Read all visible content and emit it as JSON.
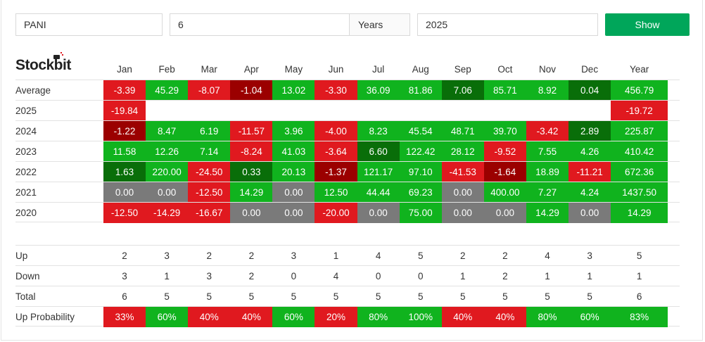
{
  "controls": {
    "symbol": "PANI",
    "years": "6",
    "years_unit": "Years",
    "end_year": "2025",
    "show_label": "Show"
  },
  "logo": {
    "text": "Stockbit"
  },
  "colors": {
    "dark_red": "#9b0000",
    "red": "#e0191f",
    "dark_green": "#096e09",
    "green": "#10b31e",
    "gray": "#7a7a7a",
    "button": "#00a65a"
  },
  "months": [
    "Jan",
    "Feb",
    "Mar",
    "Apr",
    "May",
    "Jun",
    "Jul",
    "Aug",
    "Sep",
    "Oct",
    "Nov",
    "Dec",
    "Year"
  ],
  "rows": [
    {
      "label": "Average",
      "cells": [
        {
          "v": "-3.39",
          "c": "red"
        },
        {
          "v": "45.29",
          "c": "green"
        },
        {
          "v": "-8.07",
          "c": "red"
        },
        {
          "v": "-1.04",
          "c": "dark_red"
        },
        {
          "v": "13.02",
          "c": "green"
        },
        {
          "v": "-3.30",
          "c": "red"
        },
        {
          "v": "36.09",
          "c": "green"
        },
        {
          "v": "81.86",
          "c": "green"
        },
        {
          "v": "7.06",
          "c": "dark_green"
        },
        {
          "v": "85.71",
          "c": "green"
        },
        {
          "v": "8.92",
          "c": "green"
        },
        {
          "v": "0.04",
          "c": "dark_green"
        },
        {
          "v": "456.79",
          "c": "green"
        }
      ]
    },
    {
      "label": "2025",
      "cells": [
        {
          "v": "-19.84",
          "c": "red"
        },
        {
          "v": "",
          "c": "none"
        },
        {
          "v": "",
          "c": "none"
        },
        {
          "v": "",
          "c": "none"
        },
        {
          "v": "",
          "c": "none"
        },
        {
          "v": "",
          "c": "none"
        },
        {
          "v": "",
          "c": "none"
        },
        {
          "v": "",
          "c": "none"
        },
        {
          "v": "",
          "c": "none"
        },
        {
          "v": "",
          "c": "none"
        },
        {
          "v": "",
          "c": "none"
        },
        {
          "v": "",
          "c": "none"
        },
        {
          "v": "-19.72",
          "c": "red"
        }
      ]
    },
    {
      "label": "2024",
      "cells": [
        {
          "v": "-1.22",
          "c": "dark_red"
        },
        {
          "v": "8.47",
          "c": "green"
        },
        {
          "v": "6.19",
          "c": "green"
        },
        {
          "v": "-11.57",
          "c": "red"
        },
        {
          "v": "3.96",
          "c": "green"
        },
        {
          "v": "-4.00",
          "c": "red"
        },
        {
          "v": "8.23",
          "c": "green"
        },
        {
          "v": "45.54",
          "c": "green"
        },
        {
          "v": "48.71",
          "c": "green"
        },
        {
          "v": "39.70",
          "c": "green"
        },
        {
          "v": "-3.42",
          "c": "red"
        },
        {
          "v": "2.89",
          "c": "dark_green"
        },
        {
          "v": "225.87",
          "c": "green"
        }
      ]
    },
    {
      "label": "2023",
      "cells": [
        {
          "v": "11.58",
          "c": "green"
        },
        {
          "v": "12.26",
          "c": "green"
        },
        {
          "v": "7.14",
          "c": "green"
        },
        {
          "v": "-8.24",
          "c": "red"
        },
        {
          "v": "41.03",
          "c": "green"
        },
        {
          "v": "-3.64",
          "c": "red"
        },
        {
          "v": "6.60",
          "c": "dark_green"
        },
        {
          "v": "122.42",
          "c": "green"
        },
        {
          "v": "28.12",
          "c": "green"
        },
        {
          "v": "-9.52",
          "c": "red"
        },
        {
          "v": "7.55",
          "c": "green"
        },
        {
          "v": "4.26",
          "c": "green"
        },
        {
          "v": "410.42",
          "c": "green"
        }
      ]
    },
    {
      "label": "2022",
      "cells": [
        {
          "v": "1.63",
          "c": "dark_green"
        },
        {
          "v": "220.00",
          "c": "green"
        },
        {
          "v": "-24.50",
          "c": "red"
        },
        {
          "v": "0.33",
          "c": "dark_green"
        },
        {
          "v": "20.13",
          "c": "green"
        },
        {
          "v": "-1.37",
          "c": "dark_red"
        },
        {
          "v": "121.17",
          "c": "green"
        },
        {
          "v": "97.10",
          "c": "green"
        },
        {
          "v": "-41.53",
          "c": "red"
        },
        {
          "v": "-1.64",
          "c": "dark_red"
        },
        {
          "v": "18.89",
          "c": "green"
        },
        {
          "v": "-11.21",
          "c": "red"
        },
        {
          "v": "672.36",
          "c": "green"
        }
      ]
    },
    {
      "label": "2021",
      "cells": [
        {
          "v": "0.00",
          "c": "gray"
        },
        {
          "v": "0.00",
          "c": "gray"
        },
        {
          "v": "-12.50",
          "c": "red"
        },
        {
          "v": "14.29",
          "c": "green"
        },
        {
          "v": "0.00",
          "c": "gray"
        },
        {
          "v": "12.50",
          "c": "green"
        },
        {
          "v": "44.44",
          "c": "green"
        },
        {
          "v": "69.23",
          "c": "green"
        },
        {
          "v": "0.00",
          "c": "gray"
        },
        {
          "v": "400.00",
          "c": "green"
        },
        {
          "v": "7.27",
          "c": "green"
        },
        {
          "v": "4.24",
          "c": "green"
        },
        {
          "v": "1437.50",
          "c": "green"
        }
      ]
    },
    {
      "label": "2020",
      "cells": [
        {
          "v": "-12.50",
          "c": "red"
        },
        {
          "v": "-14.29",
          "c": "red"
        },
        {
          "v": "-16.67",
          "c": "red"
        },
        {
          "v": "0.00",
          "c": "gray"
        },
        {
          "v": "0.00",
          "c": "gray"
        },
        {
          "v": "-20.00",
          "c": "red"
        },
        {
          "v": "0.00",
          "c": "gray"
        },
        {
          "v": "75.00",
          "c": "green"
        },
        {
          "v": "0.00",
          "c": "gray"
        },
        {
          "v": "0.00",
          "c": "gray"
        },
        {
          "v": "14.29",
          "c": "green"
        },
        {
          "v": "0.00",
          "c": "gray"
        },
        {
          "v": "14.29",
          "c": "green"
        }
      ]
    }
  ],
  "stats": [
    {
      "label": "Up",
      "cells": [
        {
          "v": "2",
          "c": "none"
        },
        {
          "v": "3",
          "c": "none"
        },
        {
          "v": "2",
          "c": "none"
        },
        {
          "v": "2",
          "c": "none"
        },
        {
          "v": "3",
          "c": "none"
        },
        {
          "v": "1",
          "c": "none"
        },
        {
          "v": "4",
          "c": "none"
        },
        {
          "v": "5",
          "c": "none"
        },
        {
          "v": "2",
          "c": "none"
        },
        {
          "v": "2",
          "c": "none"
        },
        {
          "v": "4",
          "c": "none"
        },
        {
          "v": "3",
          "c": "none"
        },
        {
          "v": "5",
          "c": "none"
        }
      ]
    },
    {
      "label": "Down",
      "cells": [
        {
          "v": "3",
          "c": "none"
        },
        {
          "v": "1",
          "c": "none"
        },
        {
          "v": "3",
          "c": "none"
        },
        {
          "v": "2",
          "c": "none"
        },
        {
          "v": "0",
          "c": "none"
        },
        {
          "v": "4",
          "c": "none"
        },
        {
          "v": "0",
          "c": "none"
        },
        {
          "v": "0",
          "c": "none"
        },
        {
          "v": "1",
          "c": "none"
        },
        {
          "v": "2",
          "c": "none"
        },
        {
          "v": "1",
          "c": "none"
        },
        {
          "v": "1",
          "c": "none"
        },
        {
          "v": "1",
          "c": "none"
        }
      ]
    },
    {
      "label": "Total",
      "cells": [
        {
          "v": "6",
          "c": "none"
        },
        {
          "v": "5",
          "c": "none"
        },
        {
          "v": "5",
          "c": "none"
        },
        {
          "v": "5",
          "c": "none"
        },
        {
          "v": "5",
          "c": "none"
        },
        {
          "v": "5",
          "c": "none"
        },
        {
          "v": "5",
          "c": "none"
        },
        {
          "v": "5",
          "c": "none"
        },
        {
          "v": "5",
          "c": "none"
        },
        {
          "v": "5",
          "c": "none"
        },
        {
          "v": "5",
          "c": "none"
        },
        {
          "v": "5",
          "c": "none"
        },
        {
          "v": "6",
          "c": "none"
        }
      ]
    },
    {
      "label": "Up Probability",
      "cells": [
        {
          "v": "33%",
          "c": "red"
        },
        {
          "v": "60%",
          "c": "green"
        },
        {
          "v": "40%",
          "c": "red"
        },
        {
          "v": "40%",
          "c": "red"
        },
        {
          "v": "60%",
          "c": "green"
        },
        {
          "v": "20%",
          "c": "red"
        },
        {
          "v": "80%",
          "c": "green"
        },
        {
          "v": "100%",
          "c": "green"
        },
        {
          "v": "40%",
          "c": "red"
        },
        {
          "v": "40%",
          "c": "red"
        },
        {
          "v": "80%",
          "c": "green"
        },
        {
          "v": "60%",
          "c": "green"
        },
        {
          "v": "83%",
          "c": "green"
        }
      ]
    }
  ]
}
